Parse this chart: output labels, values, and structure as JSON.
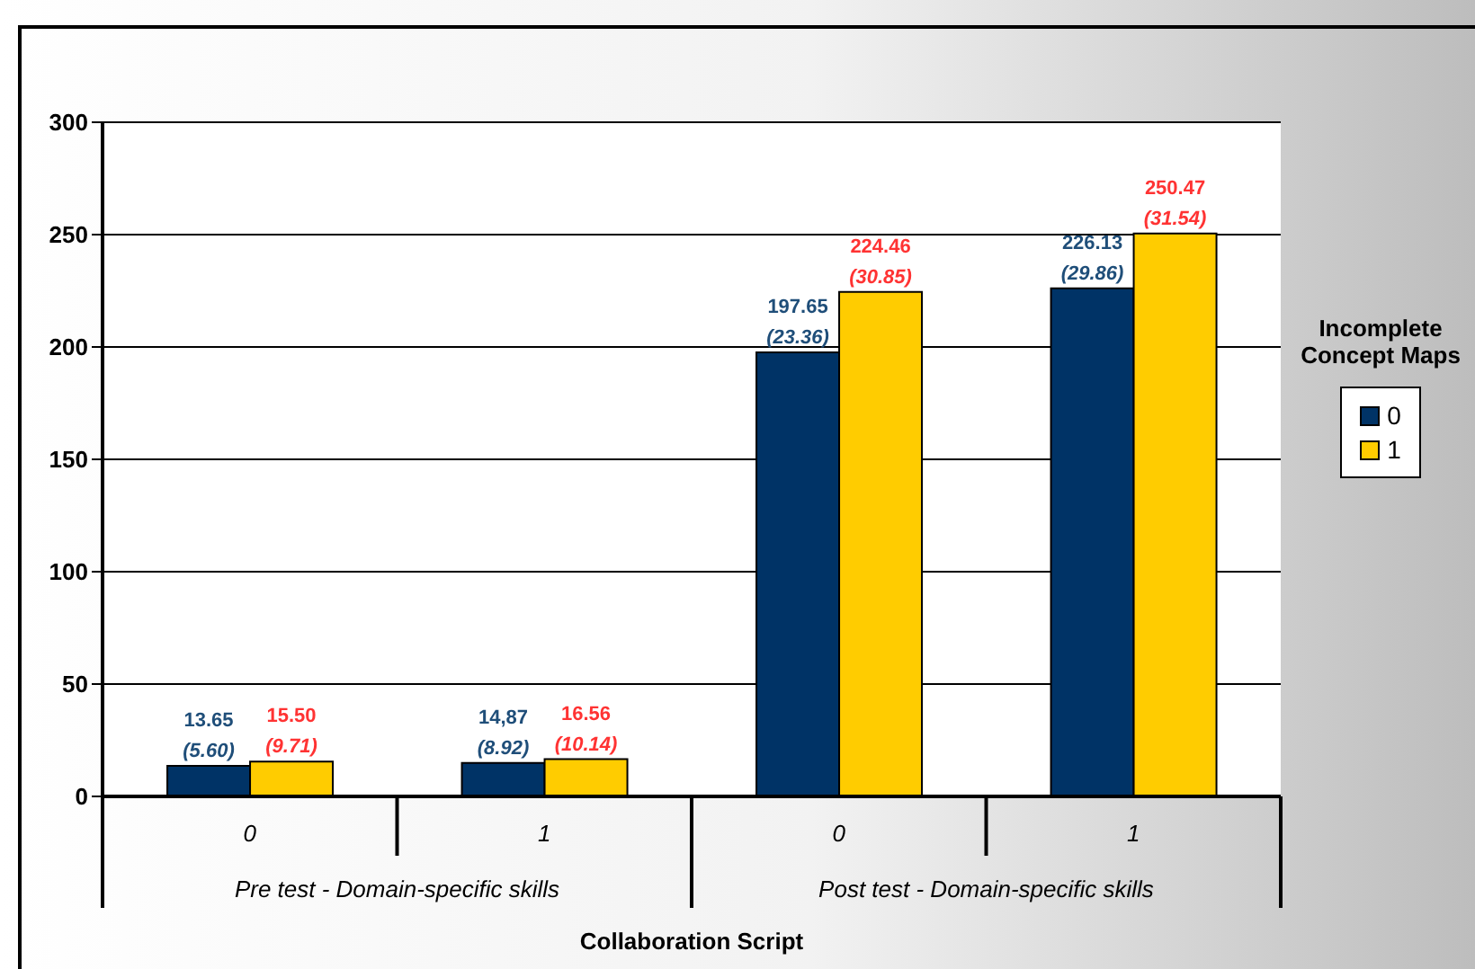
{
  "chart_data": {
    "type": "bar",
    "xlabel": "Collaboration Script",
    "legend_title": "Incomplete Concept Maps",
    "categories": [
      "0",
      "1",
      "0",
      "1"
    ],
    "series": [
      {
        "name": "0",
        "color": "#003366",
        "values": [
          13.65,
          14.87,
          197.65,
          226.13
        ],
        "value_labels": [
          "13.65 (5.60)",
          "14,87 (8.92)",
          "197.65 (23.36)",
          "226.13 (29.86)"
        ]
      },
      {
        "name": "1",
        "color": "#ffcc00",
        "values": [
          15.5,
          16.56,
          224.46,
          250.47
        ],
        "value_labels": [
          "15.50 (9.71)",
          "16.56 (10.14)",
          "224.46 (30.85)",
          "250.47 (31.54)"
        ]
      }
    ],
    "annotations": [
      "Pre test - Domain-specific skills",
      "Post test - Domain-specific skills"
    ],
    "ylim": [
      0,
      300
    ],
    "yticks": [
      0,
      50,
      100,
      150,
      200,
      250,
      300
    ],
    "grid": "y",
    "legend": "right"
  }
}
